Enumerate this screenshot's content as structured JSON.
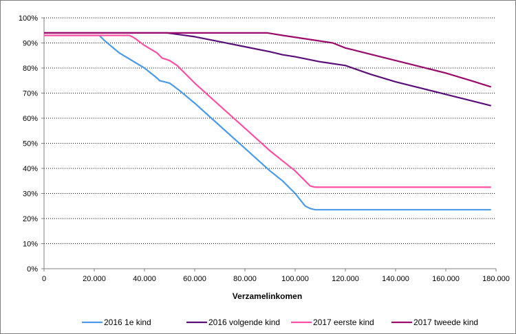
{
  "chart_data": {
    "type": "line",
    "title": "",
    "xlabel": "Verzamelinkomen",
    "ylabel": "",
    "xlim": [
      0,
      180000
    ],
    "ylim": [
      0,
      100
    ],
    "x_ticks": [
      0,
      20000,
      40000,
      60000,
      80000,
      100000,
      120000,
      140000,
      160000,
      180000
    ],
    "x_tick_labels": [
      "0",
      "20.000",
      "40.000",
      "60.000",
      "80.000",
      "100.000",
      "120.000",
      "140.000",
      "160.000",
      "180.000"
    ],
    "y_ticks": [
      0,
      10,
      20,
      30,
      40,
      50,
      60,
      70,
      80,
      90,
      100
    ],
    "y_tick_labels": [
      "0%",
      "10%",
      "20%",
      "30%",
      "40%",
      "50%",
      "60%",
      "70%",
      "80%",
      "90%",
      "100%"
    ],
    "grid": "horizontal dotted",
    "legend_position": "bottom",
    "series": [
      {
        "name": "2016 1e kind",
        "color": "#4a9be8",
        "points": [
          [
            0,
            93
          ],
          [
            22000,
            93
          ],
          [
            24000,
            91
          ],
          [
            30000,
            86
          ],
          [
            40000,
            80
          ],
          [
            45000,
            76
          ],
          [
            46000,
            75
          ],
          [
            50000,
            74
          ],
          [
            54000,
            71
          ],
          [
            60000,
            66
          ],
          [
            70000,
            57
          ],
          [
            80000,
            48
          ],
          [
            90000,
            39
          ],
          [
            95000,
            35
          ],
          [
            100000,
            30
          ],
          [
            104000,
            25
          ],
          [
            106000,
            24
          ],
          [
            108000,
            23.5
          ],
          [
            178000,
            23.5
          ]
        ]
      },
      {
        "name": "2016 volgende kind",
        "color": "#5a0e7a",
        "points": [
          [
            0,
            94
          ],
          [
            49000,
            94
          ],
          [
            60000,
            92.5
          ],
          [
            70000,
            90.5
          ],
          [
            80000,
            88.5
          ],
          [
            90000,
            86.5
          ],
          [
            95000,
            85.3
          ],
          [
            100000,
            84.5
          ],
          [
            110000,
            82.5
          ],
          [
            120000,
            81
          ],
          [
            130000,
            77.5
          ],
          [
            140000,
            74.5
          ],
          [
            150000,
            72
          ],
          [
            160000,
            69.5
          ],
          [
            170000,
            67
          ],
          [
            178000,
            65
          ]
        ]
      },
      {
        "name": "2017 eerste kind",
        "color": "#ff4fa3",
        "points": [
          [
            0,
            93
          ],
          [
            34000,
            93
          ],
          [
            36000,
            92
          ],
          [
            40000,
            89
          ],
          [
            45000,
            86
          ],
          [
            47000,
            84
          ],
          [
            50000,
            83
          ],
          [
            53000,
            81
          ],
          [
            60000,
            74
          ],
          [
            70000,
            65
          ],
          [
            80000,
            56
          ],
          [
            90000,
            47
          ],
          [
            100000,
            39
          ],
          [
            104000,
            35
          ],
          [
            106000,
            33
          ],
          [
            108000,
            32.5
          ],
          [
            178000,
            32.5
          ]
        ]
      },
      {
        "name": "2017 tweede kind",
        "color": "#9a0a6b",
        "points": [
          [
            0,
            94
          ],
          [
            89000,
            94
          ],
          [
            95000,
            93
          ],
          [
            105000,
            91.5
          ],
          [
            115000,
            90
          ],
          [
            120000,
            88
          ],
          [
            130000,
            85.5
          ],
          [
            140000,
            83
          ],
          [
            150000,
            80.5
          ],
          [
            160000,
            78
          ],
          [
            170000,
            75
          ],
          [
            178000,
            72.5
          ]
        ]
      }
    ]
  }
}
